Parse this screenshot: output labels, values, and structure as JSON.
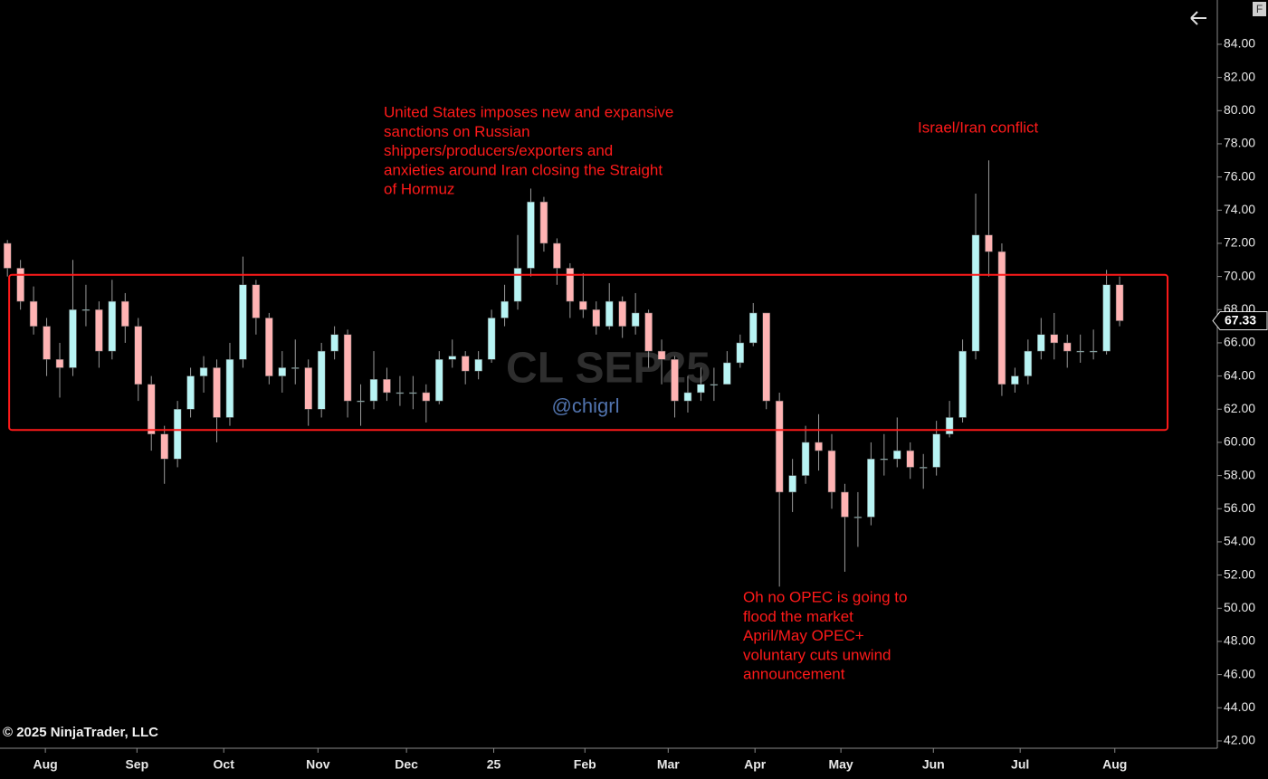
{
  "chart_data": {
    "type": "candlestick",
    "watermark": "CL SEP25",
    "handle": "@chigrl",
    "copyright": "© 2025 NinjaTrader, LLC",
    "corner_label": "F",
    "up_color": "#b8f4f4",
    "down_color": "#ffb3b3",
    "wick_color": "#9a9a9a",
    "annotations": [
      {
        "lines": [
          "United States imposes new and expansive",
          "sanctions on Russian",
          "shippers/producers/exporters and",
          "anxieties around Iran closing the Straight",
          "of Hormuz"
        ]
      },
      {
        "lines": [
          "Israel/Iran conflict"
        ]
      },
      {
        "lines": [
          "Oh no OPEC is going to",
          "flood the market",
          "April/May OPEC+",
          "voluntary cuts unwind",
          "announcement"
        ]
      }
    ],
    "zone": {
      "x_start": 0.4,
      "x_end": 266,
      "y_top": 70.1,
      "y_bottom": 60.75,
      "color": "#ff1a1a"
    },
    "x": [
      0,
      3,
      6,
      9,
      12,
      15,
      18,
      21,
      24,
      27,
      30,
      33,
      36,
      39,
      42,
      45,
      48,
      51,
      54,
      57,
      60,
      63,
      66,
      69,
      72,
      75,
      78,
      81,
      84,
      87,
      90,
      93,
      96,
      99,
      102,
      105,
      108,
      111,
      114,
      117,
      120,
      123,
      126,
      129,
      132,
      135,
      138,
      141,
      144,
      147,
      150,
      153,
      156,
      159,
      162,
      165,
      168,
      171,
      174,
      177,
      180,
      183,
      186,
      189,
      192,
      195,
      198,
      201,
      204,
      207,
      210,
      213,
      216,
      219,
      222,
      225,
      228,
      231,
      234,
      237,
      240,
      243,
      246,
      249,
      252,
      255
    ],
    "open": [
      72,
      70.5,
      68.5,
      67,
      65,
      64.5,
      68,
      68,
      65.5,
      68.5,
      67,
      63.5,
      60.5,
      59,
      62,
      64,
      64.5,
      61.5,
      65,
      69.5,
      67.5,
      64,
      64.5,
      64.5,
      62,
      65.5,
      66.5,
      62.5,
      62.5,
      63.8,
      63,
      63,
      63,
      62.5,
      65,
      65.2,
      64.3,
      65,
      67.5,
      68.5,
      70.5,
      74.5,
      72,
      70.5,
      68.5,
      68,
      67,
      68.5,
      67,
      67.8,
      65.5,
      65,
      62.5,
      63,
      63.5,
      63.5,
      64.8,
      66,
      67.8,
      62.5,
      57,
      58,
      60,
      59.5,
      57,
      55.5,
      55.5,
      59,
      59,
      59.5,
      58.5,
      58.5,
      60.5,
      61.5,
      65.5,
      72.5,
      71.5,
      63.5,
      64,
      65.5,
      66.5,
      66,
      65.5,
      65.5,
      65.5,
      69.5
    ],
    "high": [
      72.2,
      71,
      69.4,
      67.5,
      66,
      71,
      69.5,
      68.5,
      69.8,
      69,
      67.5,
      64,
      61,
      62.5,
      64.5,
      65.2,
      65,
      66,
      71.2,
      69.8,
      67.8,
      65.5,
      66.2,
      65,
      66,
      67,
      66.8,
      63.5,
      65.5,
      64.5,
      64,
      64,
      63.5,
      65.5,
      66.2,
      65.5,
      65.5,
      68,
      69.5,
      72.5,
      75.3,
      74.8,
      72.3,
      70.8,
      70.2,
      68.5,
      69.6,
      68.8,
      69,
      68,
      66.2,
      65.2,
      64,
      64.5,
      64.5,
      65.5,
      66.5,
      68.4,
      67.8,
      63,
      59,
      61,
      61.7,
      60.5,
      57.5,
      57,
      60,
      60.5,
      61.5,
      60,
      59.3,
      61.3,
      62.5,
      66.2,
      75,
      77,
      72,
      64.5,
      66.2,
      67.5,
      67.8,
      66.5,
      66.5,
      66.8,
      70.4,
      70
    ],
    "low": [
      70,
      68,
      66.5,
      64,
      62.7,
      64,
      67,
      64.5,
      65,
      66,
      62.5,
      59.5,
      57.5,
      58.5,
      61.5,
      63,
      60,
      61,
      64.5,
      66.5,
      63.5,
      63,
      63.5,
      61,
      61.5,
      65,
      61.5,
      61,
      62,
      62.5,
      62.2,
      62,
      61.2,
      62.3,
      64.5,
      63.5,
      63.8,
      64.8,
      67,
      68,
      70,
      71.5,
      69.5,
      67.5,
      67.5,
      66.5,
      66.8,
      66.3,
      66.5,
      64.5,
      63.5,
      61.5,
      61.8,
      62.5,
      62.5,
      63.5,
      64.5,
      65.8,
      62,
      51.3,
      55.8,
      57.5,
      58.3,
      56,
      52.2,
      53.7,
      55,
      58,
      58.5,
      57.8,
      57.2,
      58,
      60.3,
      61.2,
      65,
      70,
      62.8,
      63,
      63.5,
      65,
      65,
      64.5,
      64.8,
      65,
      65.3,
      67
    ],
    "close": [
      70.5,
      68.5,
      67,
      65,
      64.5,
      68,
      68,
      65.5,
      68.5,
      67,
      63.5,
      60.5,
      59,
      62,
      64,
      64.5,
      61.5,
      65,
      69.5,
      67.5,
      64,
      64.5,
      64.5,
      62,
      65.5,
      66.5,
      62.5,
      62.5,
      63.8,
      63,
      63,
      63,
      62.5,
      65,
      65.2,
      64.3,
      65,
      67.5,
      68.5,
      70.5,
      74.5,
      72,
      70.5,
      68.5,
      68,
      67,
      68.5,
      67,
      67.8,
      65.5,
      65,
      62.5,
      63,
      63.5,
      63.5,
      64.8,
      66,
      67.8,
      62.5,
      57,
      58,
      60,
      59.5,
      57,
      55.5,
      55.5,
      59,
      59,
      59.5,
      58.5,
      58.5,
      60.5,
      61.5,
      65.5,
      72.5,
      71.5,
      63.5,
      64,
      65.5,
      66.5,
      66,
      65.5,
      65.5,
      65.5,
      69.5,
      67.33
    ],
    "xlim": [
      -1.7,
      277.4
    ],
    "ylim": [
      41.56,
      86.67
    ],
    "xticks": [
      {
        "value": 8.7,
        "label": "Aug"
      },
      {
        "value": 29.7,
        "label": "Sep"
      },
      {
        "value": 49.6,
        "label": "Oct"
      },
      {
        "value": 71.2,
        "label": "Nov"
      },
      {
        "value": 91.5,
        "label": "Dec"
      },
      {
        "value": 111.5,
        "label": "25"
      },
      {
        "value": 132.4,
        "label": "Feb"
      },
      {
        "value": 151.5,
        "label": "Mar"
      },
      {
        "value": 171.4,
        "label": "Apr"
      },
      {
        "value": 191.1,
        "label": "May"
      },
      {
        "value": 212.3,
        "label": "Jun"
      },
      {
        "value": 232.2,
        "label": "Jul"
      },
      {
        "value": 253.9,
        "label": "Aug"
      }
    ],
    "yticks": [
      {
        "value": 42,
        "label": "42.00"
      },
      {
        "value": 44,
        "label": "44.00"
      },
      {
        "value": 46,
        "label": "46.00"
      },
      {
        "value": 48,
        "label": "48.00"
      },
      {
        "value": 50,
        "label": "50.00"
      },
      {
        "value": 52,
        "label": "52.00"
      },
      {
        "value": 54,
        "label": "54.00"
      },
      {
        "value": 56,
        "label": "56.00"
      },
      {
        "value": 58,
        "label": "58.00"
      },
      {
        "value": 60,
        "label": "60.00"
      },
      {
        "value": 62,
        "label": "62.00"
      },
      {
        "value": 64,
        "label": "64.00"
      },
      {
        "value": 66,
        "label": "66.00"
      },
      {
        "value": 68,
        "label": "68.00"
      },
      {
        "value": 70,
        "label": "70.00"
      },
      {
        "value": 72,
        "label": "72.00"
      },
      {
        "value": 74,
        "label": "74.00"
      },
      {
        "value": 76,
        "label": "76.00"
      },
      {
        "value": 78,
        "label": "78.00"
      },
      {
        "value": 80,
        "label": "80.00"
      },
      {
        "value": 82,
        "label": "82.00"
      },
      {
        "value": 84,
        "label": "84.00"
      }
    ]
  }
}
